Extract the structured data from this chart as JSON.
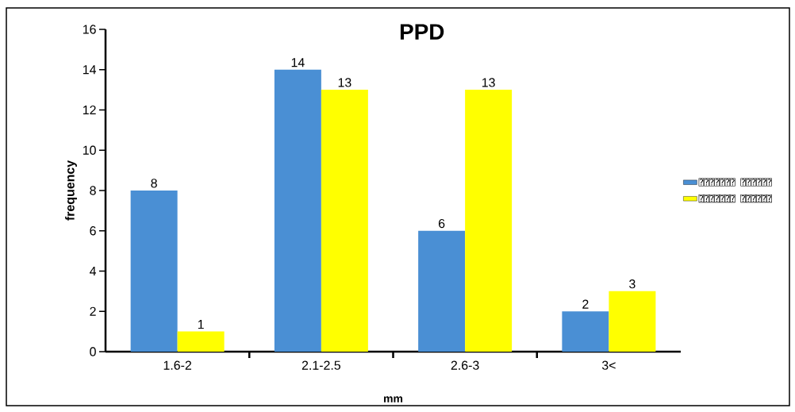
{
  "chart_data": {
    "type": "bar",
    "title": "PPD",
    "xlabel": "mm",
    "ylabel": "frequency",
    "categories": [
      "1.6-2",
      "2.1-2.5",
      "2.6-3",
      "3<"
    ],
    "series": [
      {
        "name": "⍰⍰⍰⍰⍰⍰⍰ ⍰⍰⍰⍰⍰⍰",
        "color": "#4a8fd4",
        "values": [
          8,
          14,
          6,
          2
        ]
      },
      {
        "name": "⍰⍰⍰⍰⍰⍰⍰ ⍰⍰⍰⍰⍰⍰",
        "color": "#ffff00",
        "values": [
          1,
          13,
          13,
          3
        ]
      }
    ],
    "ylim": [
      0,
      16
    ],
    "yticks": [
      0,
      2,
      4,
      6,
      8,
      10,
      12,
      14,
      16
    ],
    "data_labels": true,
    "grid": false,
    "legend": "right"
  }
}
